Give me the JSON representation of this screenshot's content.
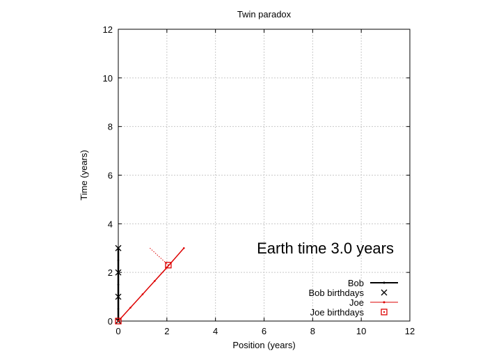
{
  "chart_data": {
    "type": "line",
    "title": "Twin paradox",
    "xlabel": "Position (years)",
    "ylabel": "Time (years)",
    "xlim": [
      0,
      12
    ],
    "ylim": [
      0,
      12
    ],
    "xticks": [
      "0",
      "2",
      "4",
      "6",
      "8",
      "10",
      "12"
    ],
    "yticks": [
      "0",
      "2",
      "4",
      "6",
      "8",
      "10",
      "12"
    ],
    "grid": true,
    "legend_position": "bottom-right",
    "annotation": "Earth time  3.0 years",
    "series": [
      {
        "name": "Bob",
        "style": "line-points",
        "color": "#000000",
        "points": [
          [
            0,
            0
          ],
          [
            0,
            0.5
          ],
          [
            0,
            1
          ],
          [
            0,
            1.5
          ],
          [
            0,
            2
          ],
          [
            0,
            2.5
          ],
          [
            0,
            3
          ]
        ]
      },
      {
        "name": "Bob birthdays",
        "style": "x-markers",
        "color": "#000000",
        "points": [
          [
            0,
            0
          ],
          [
            0,
            1
          ],
          [
            0,
            2
          ],
          [
            0,
            3
          ]
        ]
      },
      {
        "name": "Joe",
        "style": "line-points",
        "color": "#dd0000",
        "points": [
          [
            0,
            0
          ],
          [
            0.5,
            0.55
          ],
          [
            1,
            1.1
          ],
          [
            1.5,
            1.65
          ],
          [
            2,
            2.2
          ],
          [
            2.7,
            3
          ]
        ]
      },
      {
        "name": "Joe birthdays",
        "style": "square-markers",
        "color": "#dd0000",
        "points": [
          [
            0,
            0
          ],
          [
            2.06,
            2.3
          ]
        ]
      }
    ],
    "extra_segments": [
      {
        "color": "#dd0000",
        "style": "dotted",
        "points": [
          [
            1.3,
            3.0
          ],
          [
            2.06,
            2.3
          ]
        ]
      }
    ]
  }
}
